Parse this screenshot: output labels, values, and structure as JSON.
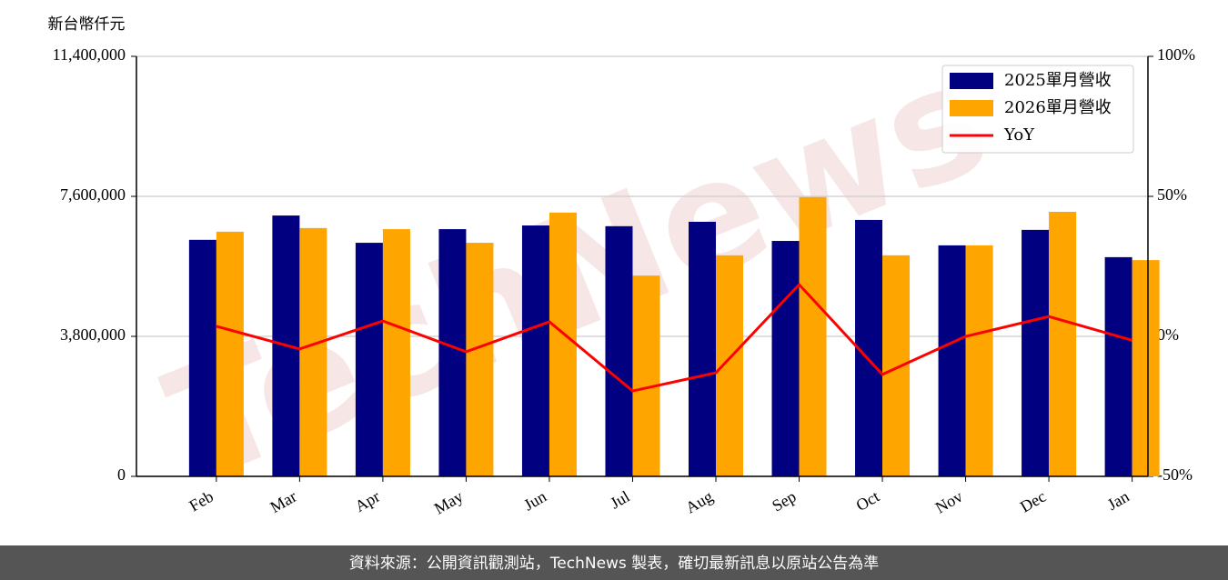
{
  "chart_data": {
    "type": "bar_line",
    "y_label": "新台幣仟元",
    "watermark": "TechNews",
    "categories": [
      "Feb",
      "Mar",
      "Apr",
      "May",
      "Jun",
      "Jul",
      "Aug",
      "Sep",
      "Oct",
      "Nov",
      "Dec",
      "Jan"
    ],
    "series": [
      {
        "name": "2025單月營收",
        "color": "#000080",
        "values": [
          6420000,
          7080000,
          6340000,
          6710000,
          6810000,
          6790000,
          6910000,
          6390000,
          6960000,
          6270000,
          6690000,
          5950000
        ]
      },
      {
        "name": "2026單月營收",
        "color": "#ffa500",
        "values": [
          6640000,
          6740000,
          6710000,
          6340000,
          7160000,
          5450000,
          6000000,
          7580000,
          6000000,
          6270000,
          7180000,
          5870000
        ]
      },
      {
        "name": "YoY",
        "color": "#ff0000",
        "axis": "y2",
        "values": [
          3.6,
          -4.5,
          5.5,
          -5.5,
          5.2,
          -19.5,
          -13.0,
          18.5,
          -13.6,
          0.0,
          7.1,
          -1.4
        ]
      }
    ],
    "ylim": [
      0,
      11400000
    ],
    "yticks": [
      0,
      {
        "value": 3800000,
        "label": "3,800,000"
      },
      {
        "value": 7600000,
        "label": "7,600,000"
      },
      {
        "value": 11400000,
        "label": "11,400,000"
      }
    ],
    "y2lim": [
      -50,
      100
    ],
    "y2ticks": [
      {
        "value": -50,
        "label": "-50%"
      },
      {
        "value": 0,
        "label": "0%"
      },
      {
        "value": 50,
        "label": "50%"
      },
      {
        "value": 100,
        "label": "100%"
      }
    ],
    "grid": true,
    "legend": "upper right"
  },
  "footer": "資料來源：公開資訊觀測站，TechNews 製表，確切最新訊息以原站公告為準"
}
